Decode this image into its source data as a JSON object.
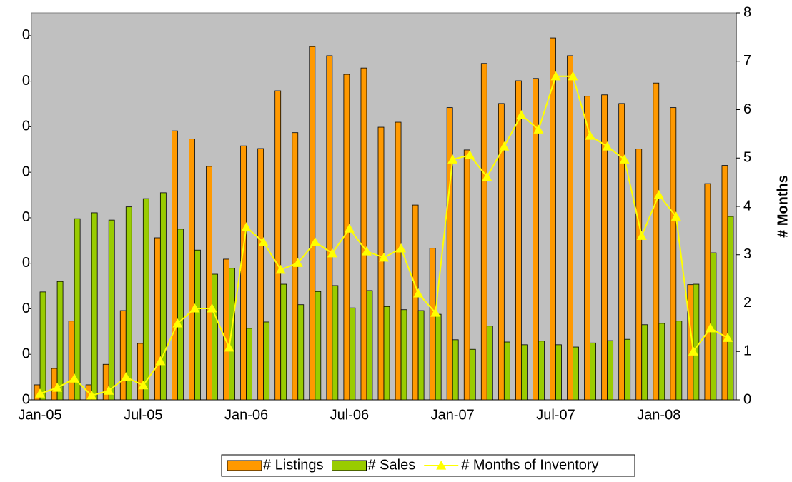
{
  "chart_data": {
    "type": "bar-line",
    "categories": [
      "Jan-05",
      null,
      null,
      null,
      null,
      null,
      "Jul-05",
      null,
      null,
      null,
      null,
      null,
      "Jan-06",
      null,
      null,
      null,
      null,
      null,
      "Jul-06",
      null,
      null,
      null,
      null,
      null,
      "Jan-07",
      null,
      null,
      null,
      null,
      null,
      "Jul-07",
      null,
      null,
      null,
      null,
      null,
      "Jan-08",
      null,
      null,
      null,
      null
    ],
    "series": [
      {
        "name": "# Listings",
        "type": "bar",
        "color": "#ff9900",
        "values": [
          3.3,
          6.9,
          17.3,
          3.3,
          7.8,
          19.6,
          12.4,
          35.6,
          59.1,
          57.3,
          51.3,
          30.9,
          55.8,
          55.2,
          67.9,
          58.7,
          77.6,
          75.6,
          71.5,
          72.9,
          59.9,
          61.0,
          42.8,
          33.3,
          64.2,
          54.9,
          73.9,
          65.1,
          70.1,
          70.6,
          79.5,
          75.6,
          66.7,
          67.0,
          65.1,
          55.1,
          69.6,
          64.2,
          25.3,
          47.5,
          51.5
        ]
      },
      {
        "name": "# Sales",
        "type": "bar",
        "color": "#99cc00",
        "values": [
          23.7,
          26.0,
          39.8,
          41.1,
          39.5,
          42.4,
          44.2,
          45.5,
          37.5,
          32.9,
          27.6,
          28.9,
          15.7,
          17.1,
          25.4,
          20.9,
          23.8,
          25.1,
          20.2,
          24.0,
          20.5,
          19.8,
          19.6,
          18.8,
          13.2,
          11.1,
          16.2,
          12.7,
          12.1,
          12.9,
          12.1,
          11.6,
          12.5,
          13.0,
          13.3,
          16.5,
          16.8,
          17.3,
          25.4,
          32.3,
          40.3
        ]
      },
      {
        "name": "# Months of Inventory",
        "type": "line",
        "axis": "y2",
        "color": "#ffff00",
        "values": [
          0.13,
          0.25,
          0.44,
          0.09,
          0.19,
          0.47,
          0.3,
          0.8,
          1.58,
          1.89,
          1.89,
          1.08,
          3.57,
          3.26,
          2.69,
          2.83,
          3.26,
          3.03,
          3.54,
          3.07,
          2.94,
          3.13,
          2.2,
          1.8,
          4.97,
          5.06,
          4.61,
          5.24,
          5.89,
          5.59,
          6.69,
          6.69,
          5.46,
          5.24,
          4.97,
          3.39,
          4.24,
          3.79,
          1.0,
          1.48,
          1.28
        ]
      }
    ],
    "ylim": [
      0,
      85
    ],
    "yticks": [
      0,
      {
        "value": 10,
        "label": "0"
      },
      {
        "value": 20,
        "label": "0"
      },
      {
        "value": 30,
        "label": "0"
      },
      {
        "value": 40,
        "label": "0"
      },
      {
        "value": 50,
        "label": "0"
      },
      {
        "value": 60,
        "label": "0"
      },
      {
        "value": 70,
        "label": "0"
      },
      {
        "value": 80,
        "label": "0"
      }
    ],
    "y2label": "# Months",
    "y2lim": [
      0,
      8
    ],
    "y2ticks": [
      0,
      1,
      2,
      3,
      4,
      5,
      6,
      7,
      8
    ],
    "legend": "bottom"
  }
}
